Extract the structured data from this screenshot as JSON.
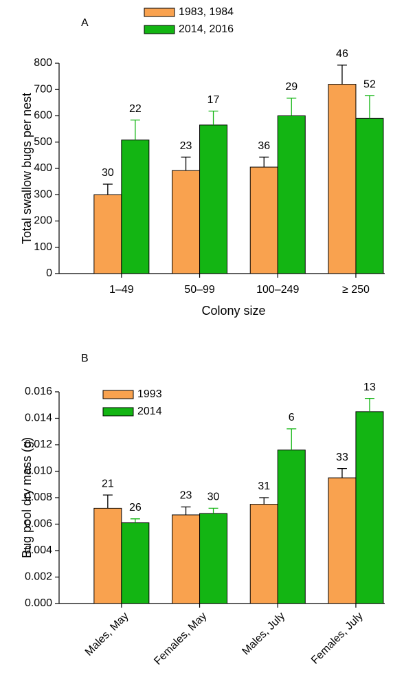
{
  "chart_data": [
    {
      "type": "bar",
      "panel": "A",
      "ylabel": "Total swallow bugs per nest",
      "xlabel": "Colony size",
      "categories": [
        "1–49",
        "50–99",
        "100–249",
        "≥ 250"
      ],
      "series": [
        {
          "name": "1983, 1984",
          "color": "#f9a24f",
          "error_color": "#000000",
          "values": [
            300,
            392,
            405,
            720
          ],
          "errors": [
            40,
            51,
            38,
            73
          ],
          "sample_sizes": [
            "30",
            "23",
            "36",
            "46"
          ]
        },
        {
          "name": "2014, 2016",
          "color": "#13b513",
          "error_color": "#13b513",
          "values": [
            508,
            565,
            600,
            590
          ],
          "errors": [
            76,
            53,
            67,
            87
          ],
          "sample_sizes": [
            "22",
            "17",
            "29",
            "52"
          ]
        }
      ],
      "ylim": [
        0,
        800
      ],
      "yticks": [
        0,
        100,
        200,
        300,
        400,
        500,
        600,
        700,
        800
      ],
      "xtick_rotation": 0
    },
    {
      "type": "bar",
      "panel": "B",
      "ylabel": "Bug pool dry mass (g)",
      "categories": [
        "Males, May",
        "Females, May",
        "Males, July",
        "Females, July"
      ],
      "series": [
        {
          "name": "1993",
          "color": "#f9a24f",
          "error_color": "#000000",
          "values": [
            0.0072,
            0.0067,
            0.0075,
            0.0095
          ],
          "errors": [
            0.001,
            0.0006,
            0.0005,
            0.0007
          ],
          "sample_sizes": [
            "21",
            "23",
            "31",
            "33"
          ]
        },
        {
          "name": "2014",
          "color": "#13b513",
          "error_color": "#13b513",
          "values": [
            0.0061,
            0.0068,
            0.0116,
            0.0145
          ],
          "errors": [
            0.0003,
            0.0004,
            0.0016,
            0.001
          ],
          "sample_sizes": [
            "26",
            "30",
            "6",
            "13"
          ]
        }
      ],
      "ylim": [
        0,
        0.016
      ],
      "yticks": [
        {
          "value": 0,
          "label": "0.000"
        },
        {
          "value": 0.002,
          "label": "0.002"
        },
        {
          "value": 0.004,
          "label": "0.004"
        },
        {
          "value": 0.006,
          "label": "0.006"
        },
        {
          "value": 0.008,
          "label": "0.008"
        },
        {
          "value": 0.01,
          "label": "0.010"
        },
        {
          "value": 0.012,
          "label": "0.012"
        },
        {
          "value": 0.014,
          "label": "0.014"
        },
        {
          "value": 0.016,
          "label": "0.016"
        }
      ],
      "xtick_rotation": -45
    }
  ]
}
